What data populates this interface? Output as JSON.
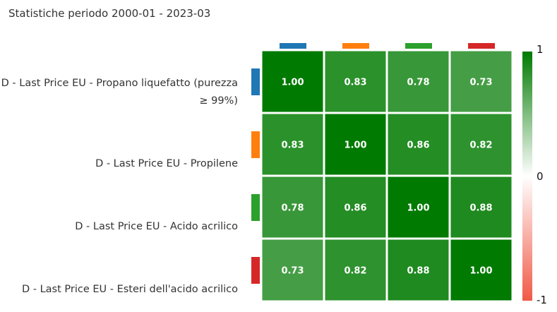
{
  "page": {
    "title": "Statistiche periodo 2000-01 - 2023-03"
  },
  "chart_data": {
    "type": "heatmap",
    "title": "Statistiche periodo 2000-01 - 2023-03",
    "rows": [
      "D - Last Price EU - Propano liquefatto (purezza ≥ 99%)",
      "D - Last Price EU - Propilene",
      "D - Last Price EU - Acido acrilico",
      "D - Last Price EU - Esteri dell'acido acrilico"
    ],
    "row_label_lines": [
      [
        "D - Last Price EU - Propano liquefatto (purezza",
        "≥ 99%)"
      ],
      [
        "D - Last Price EU - Propilene"
      ],
      [
        "D - Last Price EU - Acido acrilico"
      ],
      [
        "D - Last Price EU - Esteri dell'acido acrilico"
      ]
    ],
    "series_colors": [
      "#1f77b4",
      "#ff7f0e",
      "#2ca02c",
      "#d62728"
    ],
    "matrix": [
      [
        1.0,
        0.83,
        0.78,
        0.73
      ],
      [
        0.83,
        1.0,
        0.86,
        0.82
      ],
      [
        0.78,
        0.86,
        1.0,
        0.88
      ],
      [
        0.73,
        0.82,
        0.88,
        1.0
      ]
    ],
    "value_format": "0.00",
    "colorbar": {
      "range": [
        -1,
        1
      ],
      "tick_labels": [
        "1",
        "0",
        "-1"
      ],
      "colors": [
        "#007a00",
        "#ffffff",
        "#f05a46"
      ]
    }
  }
}
